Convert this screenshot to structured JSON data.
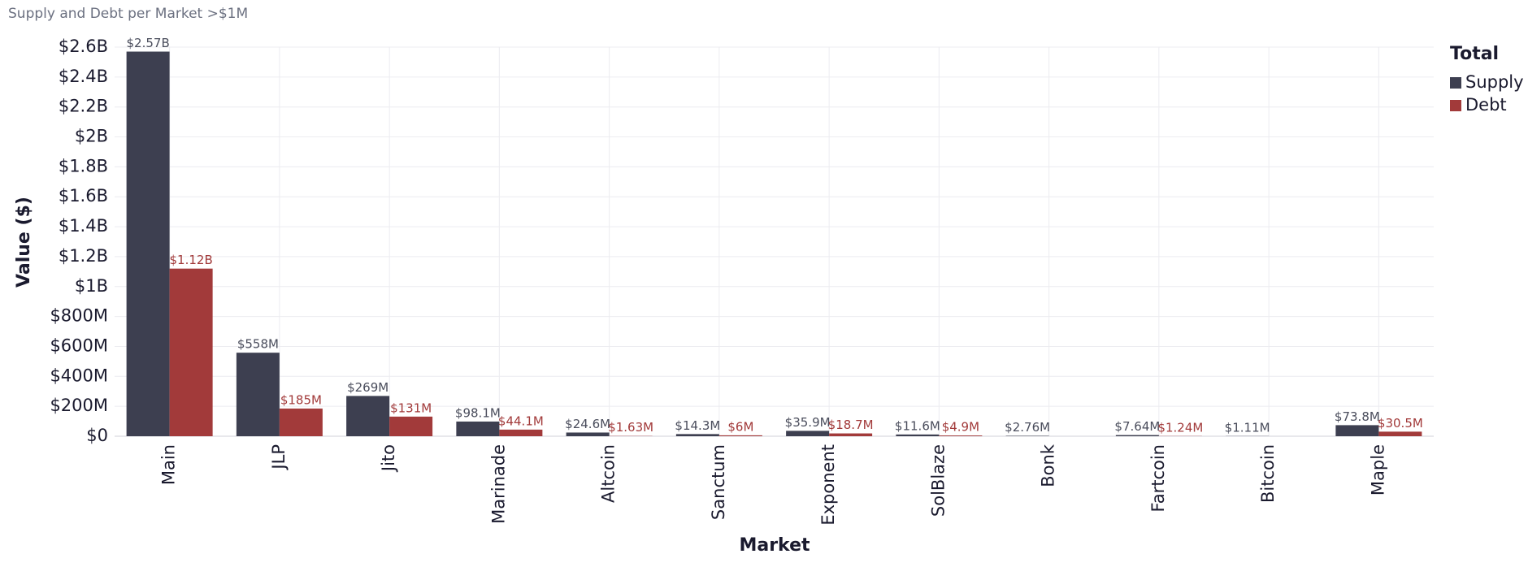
{
  "chart_data": {
    "type": "bar",
    "title": "Supply and Debt per Market >$1M",
    "x_label": "Market",
    "y_label": "Value ($)",
    "legend_title": "Total",
    "legend_position": "right",
    "grid": true,
    "categories": [
      "Main",
      "JLP",
      "Jito",
      "Marinade",
      "Altcoin",
      "Sanctum",
      "Exponent",
      "SolBlaze",
      "Bonk",
      "Fartcoin",
      "Bitcoin",
      "Maple"
    ],
    "series": [
      {
        "name": "Supply",
        "color": "#3d3f50",
        "values": [
          2570000000,
          558000000,
          269000000,
          98100000,
          24600000,
          14300000,
          35900000,
          11600000,
          2760000,
          7640000,
          1110000,
          73800000
        ],
        "value_labels": [
          "$2.57B",
          "$558M",
          "$269M",
          "$98.1M",
          "$24.6M",
          "$14.3M",
          "$35.9M",
          "$11.6M",
          "$2.76M",
          "$7.64M",
          "$1.11M",
          "$73.8M"
        ]
      },
      {
        "name": "Debt",
        "color": "#a23a3a",
        "values": [
          1120000000,
          185000000,
          131000000,
          44100000,
          1630000,
          6000000,
          18700000,
          4900000,
          null,
          1240000,
          null,
          30500000
        ],
        "value_labels": [
          "$1.12B",
          "$185M",
          "$131M",
          "$44.1M",
          "$1.63M",
          "$6M",
          "$18.7M",
          "$4.9M",
          null,
          "$1.24M",
          null,
          "$30.5M"
        ]
      }
    ],
    "ylim": [
      0,
      2600000000
    ],
    "yticks": [
      {
        "value": 0,
        "label": "$0"
      },
      {
        "value": 200000000,
        "label": "$200M"
      },
      {
        "value": 400000000,
        "label": "$400M"
      },
      {
        "value": 600000000,
        "label": "$600M"
      },
      {
        "value": 800000000,
        "label": "$800M"
      },
      {
        "value": 1000000000,
        "label": "$1B"
      },
      {
        "value": 1200000000,
        "label": "$1.2B"
      },
      {
        "value": 1400000000,
        "label": "$1.4B"
      },
      {
        "value": 1600000000,
        "label": "$1.6B"
      },
      {
        "value": 1800000000,
        "label": "$1.8B"
      },
      {
        "value": 2000000000,
        "label": "$2B"
      },
      {
        "value": 2200000000,
        "label": "$2.2B"
      },
      {
        "value": 2400000000,
        "label": "$2.4B"
      },
      {
        "value": 2600000000,
        "label": "$2.6B"
      }
    ]
  }
}
